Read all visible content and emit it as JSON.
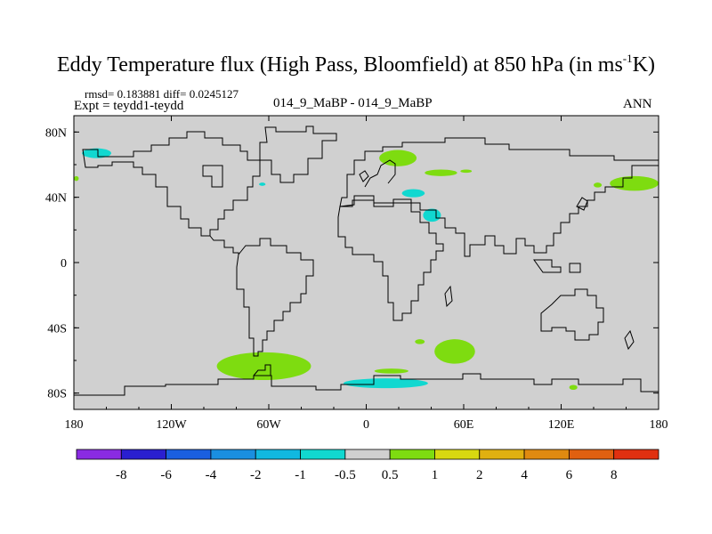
{
  "title": {
    "text": "Eddy Temperature flux (High Pass, Bloomfield) at 850 hPa (in ms",
    "unit_sup": "-1",
    "unit_tail": "K)"
  },
  "stats": "rmsd= 0.183881  diff= 0.0245127",
  "expt": "Expt = teydd1-teydd",
  "case": "014_9_MaBP - 014_9_MaBP",
  "season": "ANN",
  "chart_data": {
    "type": "contour-map",
    "title": "Eddy Temperature flux (High Pass, Bloomfield) at 850 hPa (in ms-1K)",
    "projection": "cylindrical-equidistant",
    "xlim": [
      -180,
      180
    ],
    "ylim": [
      -90,
      90
    ],
    "x_ticks": [
      -180,
      -120,
      -60,
      0,
      60,
      120,
      180
    ],
    "x_tick_labels": [
      "180",
      "120W",
      "60W",
      "0",
      "60E",
      "120E",
      "180"
    ],
    "y_ticks": [
      80,
      40,
      0,
      -40,
      -80
    ],
    "y_tick_labels": [
      "80N",
      "40N",
      "0",
      "40S",
      "80S"
    ],
    "colorbar": {
      "levels": [
        "-8",
        "-6",
        "-4",
        "-2",
        "-1",
        "-0.5",
        "0.5",
        "1",
        "2",
        "4",
        "6",
        "8"
      ],
      "colors": [
        "#8a2be2",
        "#2a1fd0",
        "#1a5fe0",
        "#1a8fe0",
        "#11b8e0",
        "#11d8d0",
        "#d0d0d0",
        "#7edc10",
        "#d8d810",
        "#e0b010",
        "#e08a10",
        "#e06010",
        "#e03010"
      ]
    },
    "background_color": "#d0d0d0",
    "regions": [
      {
        "name": "alaska-negative",
        "level": "-1 to -0.5",
        "color": "#11d8d0",
        "lon": [
          -175,
          -157
        ],
        "lat": [
          64,
          70
        ]
      },
      {
        "name": "pacific-positive-left-edge",
        "level": "0.5 to 1",
        "color": "#7edc10",
        "lon": [
          -180,
          -177
        ],
        "lat": [
          50,
          53
        ]
      },
      {
        "name": "atlantic-small-negative",
        "level": "-1 to -0.5",
        "color": "#11d8d0",
        "lon": [
          -66,
          -62
        ],
        "lat": [
          47,
          49
        ]
      },
      {
        "name": "scandinavia-positive",
        "level": "0.5 to 1",
        "color": "#7edc10",
        "lon": [
          8,
          31
        ],
        "lat": [
          59,
          69
        ]
      },
      {
        "name": "russia-positive",
        "level": "0.5 to 1",
        "color": "#7edc10",
        "lon": [
          36,
          56
        ],
        "lat": [
          53,
          57
        ]
      },
      {
        "name": "siberia-positive-small",
        "level": "0.5 to 1",
        "color": "#7edc10",
        "lon": [
          58,
          65
        ],
        "lat": [
          55,
          57
        ]
      },
      {
        "name": "black-sea-negative",
        "level": "-1 to -0.5",
        "color": "#11d8d0",
        "lon": [
          22,
          36
        ],
        "lat": [
          40,
          45
        ]
      },
      {
        "name": "arabia-negative",
        "level": "-1 to -0.5",
        "color": "#11d8d0",
        "lon": [
          35,
          46
        ],
        "lat": [
          25,
          33
        ]
      },
      {
        "name": "pacific-positive-right",
        "level": "0.5 to 1",
        "color": "#7edc10",
        "lon": [
          150,
          180
        ],
        "lat": [
          44,
          53
        ]
      },
      {
        "name": "japan-positive-small",
        "level": "0.5 to 1",
        "color": "#7edc10",
        "lon": [
          140,
          145
        ],
        "lat": [
          46,
          49
        ]
      },
      {
        "name": "southern-atlantic-positive",
        "level": "0.5 to 1",
        "color": "#7edc10",
        "lon": [
          -92,
          -34
        ],
        "lat": [
          -72,
          -55
        ]
      },
      {
        "name": "south-africa-positive",
        "level": "0.5 to 1",
        "color": "#7edc10",
        "lon": [
          42,
          67
        ],
        "lat": [
          -62,
          -47
        ]
      },
      {
        "name": "south-indian-positive-small",
        "level": "0.5 to 1",
        "color": "#7edc10",
        "lon": [
          30,
          36
        ],
        "lat": [
          -50,
          -47
        ]
      },
      {
        "name": "southern-ocean-positive",
        "level": "0.5 to 1",
        "color": "#7edc10",
        "lon": [
          5,
          26
        ],
        "lat": [
          -68,
          -65
        ]
      },
      {
        "name": "weddell-negative",
        "level": "-1 to -0.5",
        "color": "#11d8d0",
        "lon": [
          -14,
          38
        ],
        "lat": [
          -77,
          -71
        ]
      },
      {
        "name": "australia-positive-small",
        "level": "0.5 to 1",
        "color": "#7edc10",
        "lon": [
          125,
          130
        ],
        "lat": [
          -78,
          -75
        ]
      }
    ]
  }
}
